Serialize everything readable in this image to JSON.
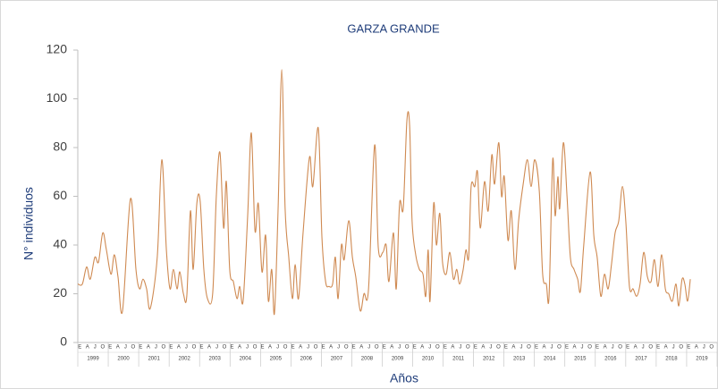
{
  "chart_data": {
    "type": "line",
    "title": "GARZA GRANDE",
    "y_label": "N° individuos",
    "x_label": "Años",
    "years": [
      "1999",
      "2000",
      "2001",
      "2002",
      "2003",
      "2004",
      "2005",
      "2006",
      "2007",
      "2008",
      "2009",
      "2010",
      "2011",
      "2012",
      "2013",
      "2014",
      "2015",
      "2016",
      "2017",
      "2018",
      "2019"
    ],
    "month_labels": [
      "E",
      "A",
      "J",
      "O"
    ],
    "xlim": [
      1999,
      2020
    ],
    "ylim": [
      0,
      120
    ],
    "yticks": [
      0,
      20,
      40,
      60,
      80,
      100,
      120
    ],
    "grid": false,
    "smooth": true,
    "x": [
      1999.0,
      1999.15,
      1999.29,
      1999.41,
      1999.56,
      1999.68,
      1999.82,
      1999.94,
      2000.09,
      2000.2,
      2000.32,
      2000.47,
      2000.73,
      2000.91,
      2001.03,
      2001.14,
      2001.26,
      2001.38,
      2001.61,
      2001.76,
      2001.91,
      2002.03,
      2002.14,
      2002.26,
      2002.35,
      2002.47,
      2002.58,
      2002.7,
      2002.79,
      2002.91,
      2003.02,
      2003.14,
      2003.26,
      2003.43,
      2003.55,
      2003.67,
      2003.79,
      2003.88,
      2003.99,
      2004.11,
      2004.23,
      2004.32,
      2004.43,
      2004.58,
      2004.7,
      2004.82,
      2004.93,
      2005.05,
      2005.17,
      2005.26,
      2005.37,
      2005.46,
      2005.58,
      2005.7,
      2005.81,
      2005.93,
      2006.05,
      2006.14,
      2006.25,
      2006.4,
      2006.61,
      2006.72,
      2006.9,
      2007.02,
      2007.14,
      2007.25,
      2007.37,
      2007.46,
      2007.55,
      2007.66,
      2007.75,
      2007.9,
      2008.02,
      2008.13,
      2008.28,
      2008.4,
      2008.55,
      2008.75,
      2008.87,
      2009.02,
      2009.13,
      2009.22,
      2009.37,
      2009.46,
      2009.57,
      2009.69,
      2009.81,
      2009.9,
      2009.98,
      2010.1,
      2010.22,
      2010.34,
      2010.43,
      2010.51,
      2010.57,
      2010.69,
      2010.78,
      2010.89,
      2010.98,
      2011.1,
      2011.22,
      2011.34,
      2011.45,
      2011.54,
      2011.66,
      2011.75,
      2011.84,
      2011.92,
      2012.04,
      2012.13,
      2012.22,
      2012.36,
      2012.48,
      2012.6,
      2012.69,
      2012.83,
      2012.92,
      2013.01,
      2013.13,
      2013.24,
      2013.36,
      2013.48,
      2013.63,
      2013.77,
      2013.89,
      2014.01,
      2014.16,
      2014.27,
      2014.39,
      2014.48,
      2014.6,
      2014.68,
      2014.77,
      2014.83,
      2014.95,
      2015.07,
      2015.18,
      2015.3,
      2015.42,
      2015.51,
      2015.62,
      2015.83,
      2015.95,
      2016.06,
      2016.18,
      2016.3,
      2016.42,
      2016.53,
      2016.65,
      2016.77,
      2016.89,
      2017.0,
      2017.12,
      2017.24,
      2017.36,
      2017.47,
      2017.59,
      2017.71,
      2017.83,
      2017.94,
      2018.06,
      2018.18,
      2018.3,
      2018.41,
      2018.53,
      2018.65,
      2018.74,
      2018.85,
      2018.94,
      2019.03,
      2019.12
    ],
    "series": [
      {
        "color": "#cf8a52",
        "values": [
          24,
          24,
          31,
          26,
          35,
          33,
          45,
          38,
          28,
          36,
          27,
          13,
          59,
          30,
          22,
          26,
          22,
          14,
          35,
          75,
          38,
          22,
          30,
          22,
          29,
          20,
          19,
          54,
          30,
          57,
          58,
          30,
          18,
          20,
          60,
          78,
          47,
          66,
          30,
          25,
          18,
          23,
          17,
          52,
          86,
          46,
          57,
          29,
          44,
          17,
          30,
          12,
          55,
          112,
          55,
          35,
          18,
          32,
          18,
          45,
          76,
          64,
          88,
          43,
          25,
          23,
          24,
          35,
          18,
          40,
          34,
          50,
          35,
          27,
          13,
          20,
          22,
          81,
          39,
          37,
          40,
          25,
          45,
          22,
          57,
          55,
          91,
          89,
          50,
          36,
          30,
          28,
          19,
          38,
          17,
          57,
          40,
          53,
          33,
          28,
          37,
          26,
          30,
          24,
          30,
          38,
          35,
          64,
          64,
          70,
          47,
          66,
          54,
          77,
          65,
          82,
          60,
          68,
          42,
          54,
          30,
          50,
          65,
          75,
          64,
          75,
          62,
          28,
          24,
          19,
          75,
          52,
          68,
          55,
          82,
          60,
          35,
          30,
          26,
          21,
          40,
          70,
          44,
          35,
          19,
          28,
          22,
          32,
          45,
          50,
          64,
          50,
          23,
          22,
          19,
          24,
          37,
          27,
          25,
          34,
          23,
          36,
          22,
          20,
          17,
          24,
          15,
          26,
          24,
          17,
          26
        ]
      }
    ]
  }
}
